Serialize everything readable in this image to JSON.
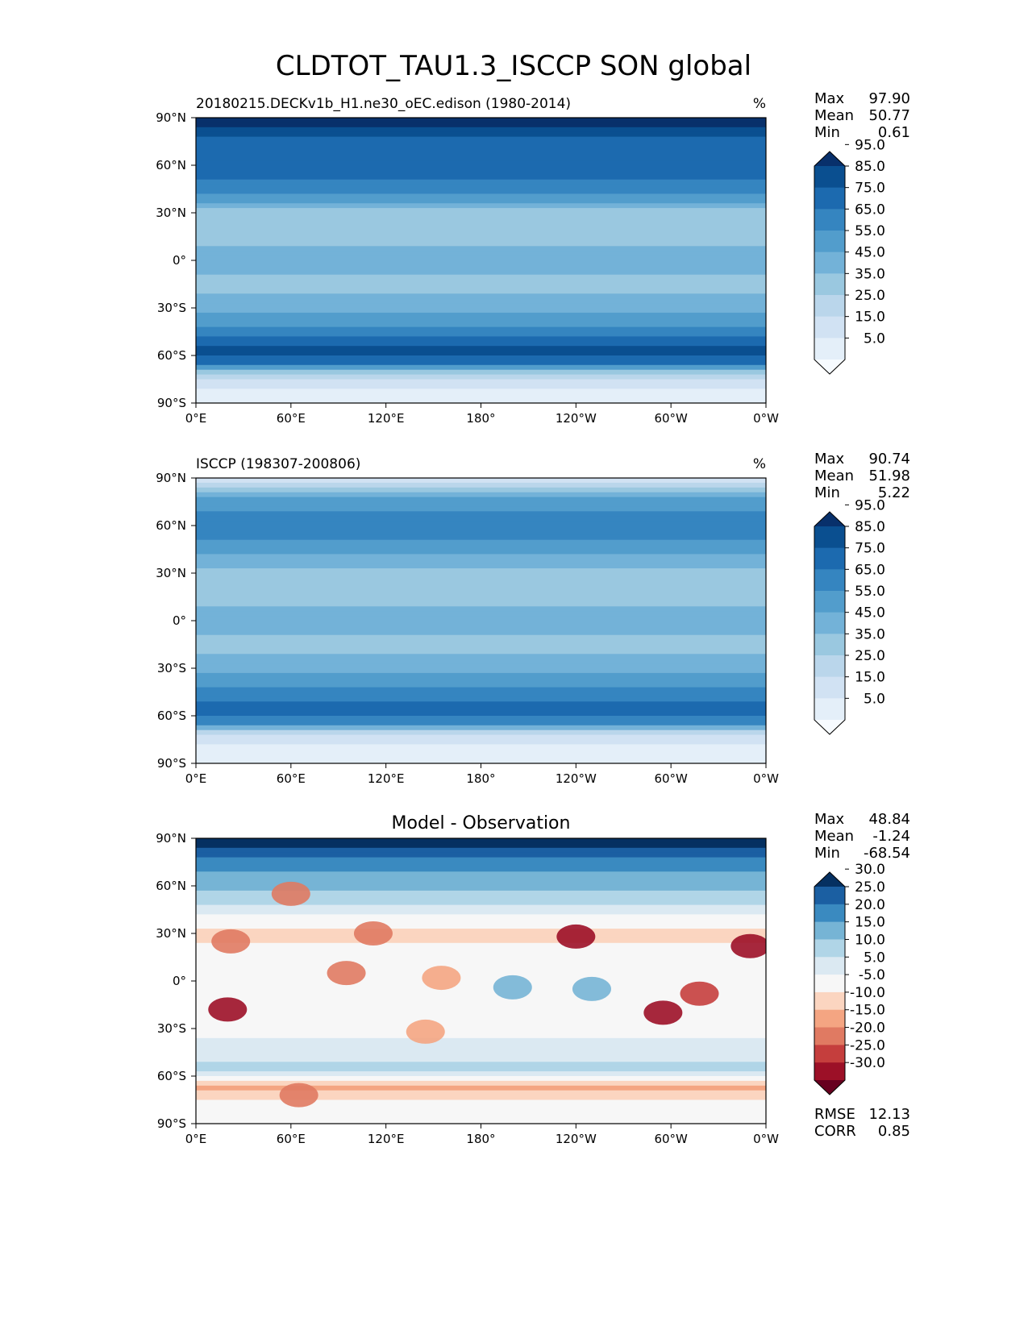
{
  "figure": {
    "title": "CLDTOT_TAU1.3_ISCCP SON global"
  },
  "chart_data": [
    {
      "type": "heatmap",
      "panel": "model",
      "title": "20180215.DECKv1b_H1.ne30_oEC.edison (1980-2014)",
      "units": "%",
      "stats": [
        {
          "label": "Max",
          "value": "97.90"
        },
        {
          "label": "Mean",
          "value": "50.77"
        },
        {
          "label": "Min",
          "value": "0.61"
        }
      ],
      "x_ticks": [
        "0°E",
        "60°E",
        "120°E",
        "180°",
        "120°W",
        "60°W",
        "0°W"
      ],
      "y_ticks": [
        "90°N",
        "60°N",
        "30°N",
        "0°",
        "30°S",
        "60°S",
        "90°S"
      ],
      "xlim": [
        0,
        360
      ],
      "ylim": [
        -90,
        90
      ],
      "colorbar": {
        "extend": "both",
        "colors": [
          "#f7fbff",
          "#e4eff9",
          "#d1e2f3",
          "#bad6eb",
          "#9ac8e0",
          "#73b2d8",
          "#529dcc",
          "#3585c0",
          "#1c6aaf",
          "#0a4f90",
          "#08306b"
        ],
        "tick_labels": [
          "5.0",
          "15.0",
          "25.0",
          "35.0",
          "45.0",
          "55.0",
          "65.0",
          "75.0",
          "85.0",
          "95.0"
        ]
      },
      "latitude_profile": [
        {
          "lat": 87,
          "level": 10
        },
        {
          "lat": 75,
          "level": 8
        },
        {
          "lat": 60,
          "level": 8
        },
        {
          "lat": 45,
          "level": 7
        },
        {
          "lat": 30,
          "level": 4
        },
        {
          "lat": 15,
          "level": 4
        },
        {
          "lat": 0,
          "level": 5
        },
        {
          "lat": -15,
          "level": 4
        },
        {
          "lat": -30,
          "level": 5
        },
        {
          "lat": -45,
          "level": 7
        },
        {
          "lat": -57,
          "level": 9
        },
        {
          "lat": -65,
          "level": 8
        },
        {
          "lat": -72,
          "level": 3
        },
        {
          "lat": -85,
          "level": 1
        }
      ]
    },
    {
      "type": "heatmap",
      "panel": "observation",
      "title": "ISCCP (198307-200806)",
      "units": "%",
      "stats": [
        {
          "label": "Max",
          "value": "90.74"
        },
        {
          "label": "Mean",
          "value": "51.98"
        },
        {
          "label": "Min",
          "value": "5.22"
        }
      ],
      "x_ticks": [
        "0°E",
        "60°E",
        "120°E",
        "180°",
        "120°W",
        "60°W",
        "0°W"
      ],
      "y_ticks": [
        "90°N",
        "60°N",
        "30°N",
        "0°",
        "30°S",
        "60°S",
        "90°S"
      ],
      "xlim": [
        0,
        360
      ],
      "ylim": [
        -90,
        90
      ],
      "colorbar": {
        "extend": "both",
        "colors": [
          "#f7fbff",
          "#e4eff9",
          "#d1e2f3",
          "#bad6eb",
          "#9ac8e0",
          "#73b2d8",
          "#529dcc",
          "#3585c0",
          "#1c6aaf",
          "#0a4f90",
          "#08306b"
        ],
        "tick_labels": [
          "5.0",
          "15.0",
          "25.0",
          "35.0",
          "45.0",
          "55.0",
          "65.0",
          "75.0",
          "85.0",
          "95.0"
        ]
      },
      "latitude_profile": [
        {
          "lat": 87,
          "level": 2
        },
        {
          "lat": 75,
          "level": 6
        },
        {
          "lat": 60,
          "level": 7
        },
        {
          "lat": 45,
          "level": 6
        },
        {
          "lat": 30,
          "level": 4
        },
        {
          "lat": 15,
          "level": 4
        },
        {
          "lat": 0,
          "level": 5
        },
        {
          "lat": -15,
          "level": 4
        },
        {
          "lat": -30,
          "level": 5
        },
        {
          "lat": -45,
          "level": 7
        },
        {
          "lat": -57,
          "level": 8
        },
        {
          "lat": -65,
          "level": 7
        },
        {
          "lat": -72,
          "level": 2
        },
        {
          "lat": -85,
          "level": 1
        }
      ]
    },
    {
      "type": "heatmap",
      "panel": "difference",
      "title": "Model - Observation",
      "units": "",
      "stats": [
        {
          "label": "Max",
          "value": "48.84"
        },
        {
          "label": "Mean",
          "value": "-1.24"
        },
        {
          "label": "Min",
          "value": "-68.54"
        }
      ],
      "extra_stats": [
        {
          "label": "RMSE",
          "value": "12.13"
        },
        {
          "label": "CORR",
          "value": "0.85"
        }
      ],
      "x_ticks": [
        "0°E",
        "60°E",
        "120°E",
        "180°",
        "120°W",
        "60°W",
        "0°W"
      ],
      "y_ticks": [
        "90°N",
        "60°N",
        "30°N",
        "0°",
        "30°S",
        "60°S",
        "90°S"
      ],
      "xlim": [
        0,
        360
      ],
      "ylim": [
        -90,
        90
      ],
      "colorbar": {
        "extend": "both",
        "colors": [
          "#67001f",
          "#9c1027",
          "#c53e3d",
          "#e07a62",
          "#f4a582",
          "#fbd5c0",
          "#f7f7f7",
          "#dbe9f2",
          "#b0d5e7",
          "#76b4d5",
          "#3a8ac0",
          "#1b5fa2",
          "#053061"
        ],
        "tick_labels": [
          "-30.0",
          "-25.0",
          "-20.0",
          "-15.0",
          "-10.0",
          "-5.0",
          "5.0",
          "10.0",
          "15.0",
          "20.0",
          "25.0",
          "30.0"
        ]
      },
      "latitude_profile": [
        {
          "lat": 87,
          "level": 12
        },
        {
          "lat": 75,
          "level": 10
        },
        {
          "lat": 62,
          "level": 9
        },
        {
          "lat": 45,
          "level": 7
        },
        {
          "lat": 30,
          "level": 5
        },
        {
          "lat": 15,
          "level": 6
        },
        {
          "lat": 0,
          "level": 6
        },
        {
          "lat": -15,
          "level": 6
        },
        {
          "lat": -30,
          "level": 6
        },
        {
          "lat": -45,
          "level": 7
        },
        {
          "lat": -57,
          "level": 8
        },
        {
          "lat": -68,
          "level": 4
        },
        {
          "lat": -78,
          "level": 6
        },
        {
          "lat": -88,
          "level": 6
        }
      ],
      "anomalies": [
        {
          "lon": 20,
          "lat": -18,
          "level": 1
        },
        {
          "lon": 22,
          "lat": 25,
          "level": 3
        },
        {
          "lon": 95,
          "lat": 5,
          "level": 3
        },
        {
          "lon": 112,
          "lat": 30,
          "level": 3
        },
        {
          "lon": 240,
          "lat": 28,
          "level": 1
        },
        {
          "lon": 295,
          "lat": -20,
          "level": 1
        },
        {
          "lon": 318,
          "lat": -8,
          "level": 2
        },
        {
          "lon": 350,
          "lat": 22,
          "level": 1
        },
        {
          "lon": 145,
          "lat": -32,
          "level": 4
        },
        {
          "lon": 200,
          "lat": -4,
          "level": 9
        },
        {
          "lon": 250,
          "lat": -5,
          "level": 9
        },
        {
          "lon": 65,
          "lat": -72,
          "level": 3
        },
        {
          "lon": 155,
          "lat": 2,
          "level": 4
        },
        {
          "lon": 60,
          "lat": 55,
          "level": 3
        }
      ]
    }
  ]
}
